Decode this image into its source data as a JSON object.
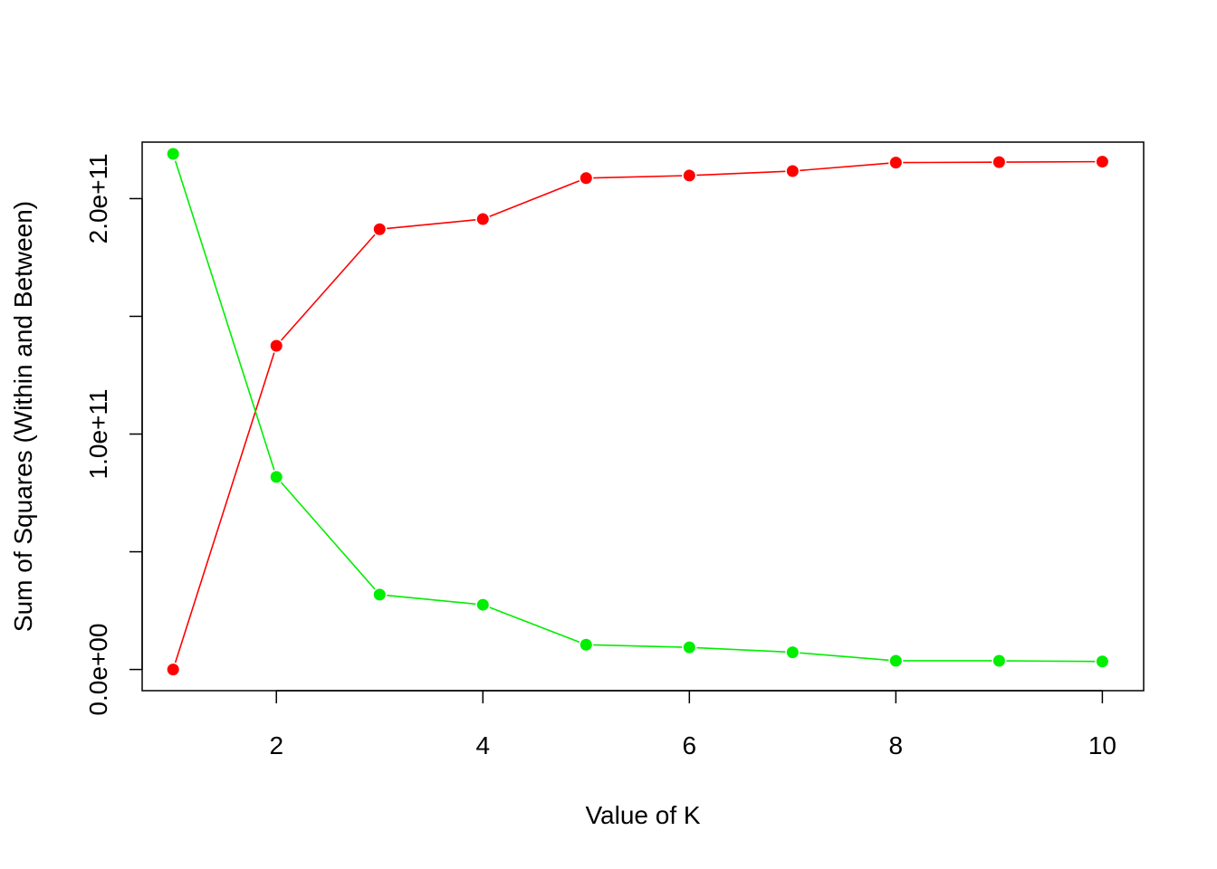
{
  "chart_data": {
    "type": "line",
    "title": "",
    "xlabel": "Value of K",
    "ylabel": "Sum of Squares (Within and Between)",
    "xlim": [
      0.7,
      10.4
    ],
    "ylim": [
      -9000000000,
      224000000000
    ],
    "x_ticks": [
      2,
      4,
      6,
      8,
      10
    ],
    "x_tick_labels": [
      "2",
      "4",
      "6",
      "8",
      "10"
    ],
    "y_ticks": [
      0,
      50000000000,
      100000000000,
      150000000000,
      200000000000
    ],
    "y_tick_labels": [
      "0.0e+00",
      "",
      "1.0e+11",
      "",
      "2.0e+11"
    ],
    "grid": false,
    "legend": "none",
    "x": [
      1,
      2,
      3,
      4,
      5,
      6,
      7,
      8,
      9,
      10
    ],
    "series": [
      {
        "color": "#ff0000",
        "values": [
          0,
          137500000000,
          187000000000,
          191300000000,
          208700000000,
          209800000000,
          211700000000,
          215300000000,
          215500000000,
          215700000000
        ]
      },
      {
        "color": "#00ee00",
        "values": [
          219000000000,
          81800000000,
          31800000000,
          27500000000,
          10500000000,
          9400000000,
          7300000000,
          3700000000,
          3700000000,
          3400000000
        ]
      }
    ]
  }
}
